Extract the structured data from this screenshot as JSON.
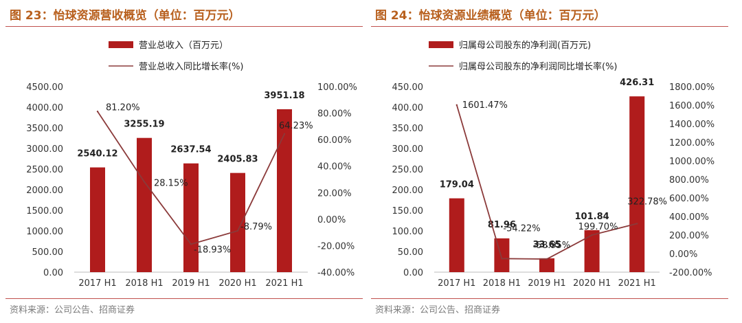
{
  "charts": [
    {
      "figure_title": "图 23：怡球资源营收概览（单位：百万元）",
      "source": "资料来源：公司公告、招商证券",
      "chart_data": {
        "type": "bar",
        "categories": [
          "2017 H1",
          "2018 H1",
          "2019 H1",
          "2020 H1",
          "2021 H1"
        ],
        "series": [
          {
            "name": "营业总收入（百万元）",
            "type": "bar",
            "axis": "left",
            "color": "#b01c1c",
            "values": [
              2540.12,
              3255.19,
              2637.54,
              2405.83,
              3951.18
            ],
            "labels": [
              "2540.12",
              "3255.19",
              "2637.54",
              "2405.83",
              "3951.18"
            ]
          },
          {
            "name": "营业总收入同比增长率(%)",
            "type": "line",
            "axis": "right",
            "color": "#8b3a3a",
            "values": [
              81.2,
              28.15,
              -18.93,
              -8.79,
              64.23
            ],
            "labels": [
              "81.20%",
              "28.15%",
              "-18.93%",
              "-8.79%",
              "64.23%"
            ]
          }
        ],
        "left_axis": {
          "min": 0,
          "max": 4500,
          "step": 500,
          "ticks": [
            "0.00",
            "500.00",
            "1000.00",
            "1500.00",
            "2000.00",
            "2500.00",
            "3000.00",
            "3500.00",
            "4000.00",
            "4500.00"
          ]
        },
        "right_axis": {
          "min": -40,
          "max": 100,
          "step": 20,
          "ticks": [
            "-40.00%",
            "-20.00%",
            "0.00%",
            "20.00%",
            "40.00%",
            "60.00%",
            "80.00%",
            "100.00%"
          ]
        },
        "legend_position": "top",
        "grid": false
      }
    },
    {
      "figure_title": "图 24：怡球资源业绩概览（单位：百万元）",
      "source": "资料来源：公司公告、招商证券",
      "chart_data": {
        "type": "bar",
        "categories": [
          "2017 H1",
          "2018 H1",
          "2019 H1",
          "2020 H1",
          "2021 H1"
        ],
        "series": [
          {
            "name": "归属母公司股东的净利润(百万元)",
            "type": "bar",
            "axis": "left",
            "color": "#b01c1c",
            "values": [
              179.04,
              81.96,
              33.65,
              101.84,
              426.31
            ],
            "labels": [
              "179.04",
              "81.96",
              "33.65",
              "101.84",
              "426.31"
            ]
          },
          {
            "name": "归属母公司股东的净利润同比增长率(%)",
            "type": "line",
            "axis": "right",
            "color": "#8b3a3a",
            "values": [
              1601.47,
              -54.22,
              -58.95,
              199.7,
              322.78
            ],
            "labels": [
              "1601.47%",
              "-54.22%",
              "-58.95%",
              "199.70%",
              "322.78%"
            ]
          }
        ],
        "left_axis": {
          "min": 0,
          "max": 450,
          "step": 50,
          "ticks": [
            "0.00",
            "50.00",
            "100.00",
            "150.00",
            "200.00",
            "250.00",
            "300.00",
            "350.00",
            "400.00",
            "450.00"
          ]
        },
        "right_axis": {
          "min": -200,
          "max": 1800,
          "step": 200,
          "ticks": [
            "-200.00%",
            "0.00%",
            "200.00%",
            "400.00%",
            "600.00%",
            "800.00%",
            "1000.00%",
            "1200.00%",
            "1400.00%",
            "1600.00%",
            "1800.00%"
          ]
        },
        "legend_position": "top",
        "grid": false
      }
    }
  ]
}
